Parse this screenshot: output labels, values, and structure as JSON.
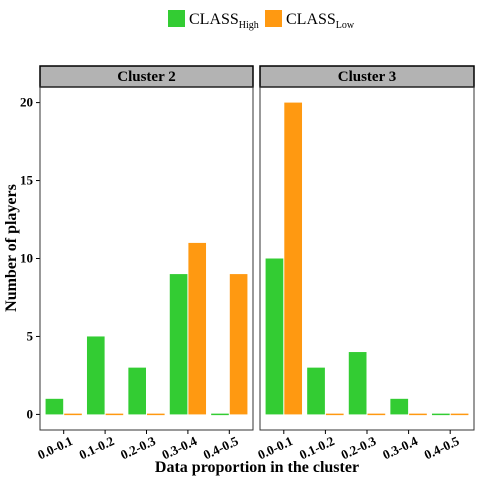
{
  "chart_data": {
    "type": "bar",
    "xlabel": "Data proportion in the cluster",
    "ylabel": "Number of players",
    "ylim": [
      -1,
      21
    ],
    "yticks": [
      0,
      5,
      10,
      15,
      20
    ],
    "legend_position": "top",
    "series_info": [
      {
        "name": "CLASS",
        "subscript": "High",
        "color": "#33cc33"
      },
      {
        "name": "CLASS",
        "subscript": "Low",
        "color": "#ff9911"
      }
    ],
    "panels": [
      {
        "title": "Cluster 2",
        "categories": [
          "0.0-0.1",
          "0.1-0.2",
          "0.2-0.3",
          "0.3-0.4",
          "0.4-0.5"
        ],
        "series": [
          {
            "name": "CLASS_High",
            "values": [
              1,
              5,
              3,
              9,
              0
            ]
          },
          {
            "name": "CLASS_Low",
            "values": [
              0,
              0,
              0,
              11,
              9
            ]
          }
        ]
      },
      {
        "title": "Cluster 3",
        "categories": [
          "0.0-0.1",
          "0.1-0.2",
          "0.2-0.3",
          "0.3-0.4",
          "0.4-0.5"
        ],
        "series": [
          {
            "name": "CLASS_High",
            "values": [
              10,
              3,
              4,
              1,
              0
            ]
          },
          {
            "name": "CLASS_Low",
            "values": [
              20,
              0,
              0,
              0,
              0
            ]
          }
        ]
      }
    ]
  }
}
